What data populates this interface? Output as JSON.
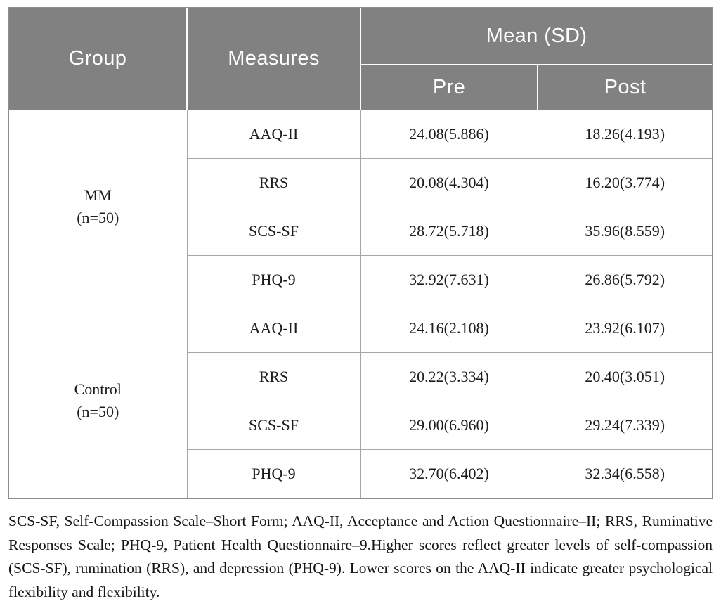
{
  "table": {
    "headers": {
      "group": "Group",
      "measures": "Measures",
      "mean_sd": "Mean (SD)",
      "pre": "Pre",
      "post": "Post"
    },
    "groups": [
      {
        "name": "MM",
        "n": "(n=50)",
        "rows": [
          {
            "measure": "AAQ-II",
            "pre": "24.08(5.886)",
            "post": "18.26(4.193)"
          },
          {
            "measure": "RRS",
            "pre": "20.08(4.304)",
            "post": "16.20(3.774)"
          },
          {
            "measure": "SCS-SF",
            "pre": "28.72(5.718)",
            "post": "35.96(8.559)"
          },
          {
            "measure": "PHQ-9",
            "pre": "32.92(7.631)",
            "post": "26.86(5.792)"
          }
        ]
      },
      {
        "name": "Control",
        "n": "(n=50)",
        "rows": [
          {
            "measure": "AAQ-II",
            "pre": "24.16(2.108)",
            "post": "23.92(6.107)"
          },
          {
            "measure": "RRS",
            "pre": "20.22(3.334)",
            "post": "20.40(3.051)"
          },
          {
            "measure": "SCS-SF",
            "pre": "29.00(6.960)",
            "post": "29.24(7.339)"
          },
          {
            "measure": "PHQ-9",
            "pre": "32.70(6.402)",
            "post": "32.34(6.558)"
          }
        ]
      }
    ],
    "footnote": "SCS-SF, Self-Compassion Scale–Short Form; AAQ-II, Acceptance and Action Questionnaire–II; RRS, Ruminative Responses Scale; PHQ-9, Patient Health Questionnaire–9.Higher scores reflect greater levels of self-compassion (SCS-SF), rumination (RRS), and depression (PHQ-9). Lower scores on the AAQ-II indicate greater psychological flexibility and flexibility."
  },
  "colors": {
    "header_bg": "#818181",
    "header_text": "#ffffff",
    "cell_border": "#a6a6a6",
    "frame_border": "#8d8d8d"
  }
}
